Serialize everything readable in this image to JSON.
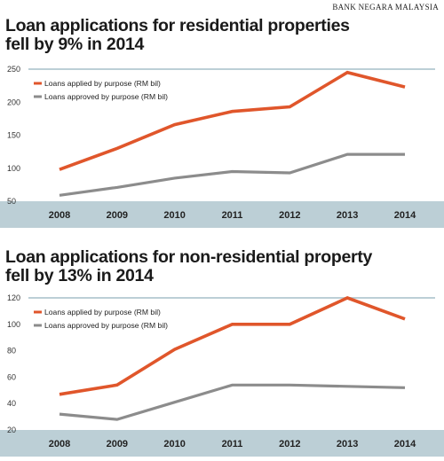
{
  "source": "BANK NEGARA MALAYSIA",
  "colors": {
    "applied": "#e0562b",
    "approved": "#8c8c8c",
    "axis_band": "#bccfd6",
    "top_rule": "#bccfd6"
  },
  "chart_data": [
    {
      "type": "line",
      "title_lines": [
        "Loan applications for residential properties",
        "fell by 9% in 2014"
      ],
      "x": [
        "2008",
        "2009",
        "2010",
        "2011",
        "2012",
        "2013",
        "2014"
      ],
      "yticks": [
        50,
        100,
        150,
        200,
        250
      ],
      "ylim": [
        50,
        250
      ],
      "grid": false,
      "legend_position": "top-left",
      "series": [
        {
          "name": "Loans applied by purpose (RM bil)",
          "color": "#e0562b",
          "values": [
            98,
            130,
            166,
            186,
            193,
            245,
            223
          ]
        },
        {
          "name": "Loans approved by purpose (RM bil)",
          "color": "#8c8c8c",
          "values": [
            59,
            71,
            85,
            95,
            93,
            121,
            121
          ]
        }
      ]
    },
    {
      "type": "line",
      "title_lines": [
        "Loan applications for non-residential property",
        "fell by 13% in 2014"
      ],
      "x": [
        "2008",
        "2009",
        "2010",
        "2011",
        "2012",
        "2013",
        "2014"
      ],
      "yticks": [
        20,
        40,
        60,
        80,
        100,
        120
      ],
      "ylim": [
        20,
        120
      ],
      "grid": false,
      "legend_position": "top-left",
      "series": [
        {
          "name": "Loans applied by purpose (RM bil)",
          "color": "#e0562b",
          "values": [
            47,
            54,
            81,
            100,
            100,
            120,
            104
          ]
        },
        {
          "name": "Loans approved by purpose (RM bil)",
          "color": "#8c8c8c",
          "values": [
            32,
            28,
            41,
            54,
            54,
            53,
            52
          ]
        }
      ]
    }
  ]
}
